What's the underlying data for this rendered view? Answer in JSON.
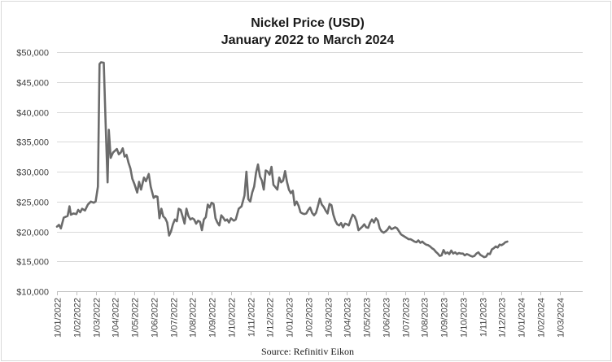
{
  "chart_data": {
    "type": "line",
    "title": "Nickel Price (USD)",
    "subtitle": "January 2022 to March 2024",
    "xlabel": "",
    "ylabel": "",
    "source": "Source: Refinitiv Eikon",
    "ylim": [
      10000,
      50000
    ],
    "y_ticks": [
      {
        "value": 10000,
        "label": "$10,000"
      },
      {
        "value": 15000,
        "label": "$15,000"
      },
      {
        "value": 20000,
        "label": "$20,000"
      },
      {
        "value": 25000,
        "label": "$25,000"
      },
      {
        "value": 30000,
        "label": "$30,000"
      },
      {
        "value": 35000,
        "label": "$35,000"
      },
      {
        "value": 40000,
        "label": "$40,000"
      },
      {
        "value": 45000,
        "label": "$45,000"
      },
      {
        "value": 50000,
        "label": "$50,000"
      }
    ],
    "x_range": [
      0,
      27.2
    ],
    "x_ticks": [
      "1/01/2022",
      "1/02/2022",
      "1/03/2022",
      "1/04/2022",
      "1/05/2022",
      "1/06/2022",
      "1/07/2022",
      "1/08/2022",
      "1/09/2022",
      "1/10/2022",
      "1/11/2022",
      "1/12/2022",
      "1/01/2023",
      "1/02/2023",
      "1/03/2023",
      "1/04/2023",
      "1/05/2023",
      "1/06/2023",
      "1/07/2023",
      "1/08/2023",
      "1/09/2023",
      "1/10/2023",
      "1/11/2023",
      "1/12/2023",
      "1/01/2024",
      "1/02/2024",
      "1/03/2024"
    ],
    "series": [
      {
        "name": "Nickel Price (USD)",
        "color": "#6b6b6b",
        "x_unit": "months since 1/01/2022",
        "points": [
          [
            0.0,
            20800
          ],
          [
            0.1,
            21100
          ],
          [
            0.2,
            20500
          ],
          [
            0.35,
            22300
          ],
          [
            0.55,
            22600
          ],
          [
            0.65,
            24200
          ],
          [
            0.72,
            22800
          ],
          [
            0.85,
            23000
          ],
          [
            1.0,
            22900
          ],
          [
            1.1,
            23600
          ],
          [
            1.2,
            23200
          ],
          [
            1.3,
            23800
          ],
          [
            1.45,
            23500
          ],
          [
            1.6,
            24500
          ],
          [
            1.75,
            25000
          ],
          [
            1.9,
            24800
          ],
          [
            2.0,
            25000
          ],
          [
            2.12,
            27500
          ],
          [
            2.2,
            48000
          ],
          [
            2.28,
            48300
          ],
          [
            2.42,
            48200
          ],
          [
            2.52,
            38000
          ],
          [
            2.62,
            28200
          ],
          [
            2.68,
            37000
          ],
          [
            2.78,
            32300
          ],
          [
            2.9,
            33200
          ],
          [
            3.0,
            33500
          ],
          [
            3.1,
            33800
          ],
          [
            3.2,
            32900
          ],
          [
            3.3,
            33200
          ],
          [
            3.4,
            33900
          ],
          [
            3.5,
            32500
          ],
          [
            3.6,
            32800
          ],
          [
            3.7,
            31500
          ],
          [
            3.8,
            30500
          ],
          [
            3.9,
            28800
          ],
          [
            4.0,
            28000
          ],
          [
            4.15,
            26500
          ],
          [
            4.25,
            28300
          ],
          [
            4.35,
            27000
          ],
          [
            4.5,
            29000
          ],
          [
            4.6,
            28400
          ],
          [
            4.75,
            29600
          ],
          [
            4.85,
            27500
          ],
          [
            5.0,
            25600
          ],
          [
            5.1,
            25900
          ],
          [
            5.2,
            25800
          ],
          [
            5.3,
            22200
          ],
          [
            5.4,
            23800
          ],
          [
            5.5,
            22500
          ],
          [
            5.6,
            22200
          ],
          [
            5.7,
            21500
          ],
          [
            5.8,
            19300
          ],
          [
            5.9,
            20000
          ],
          [
            6.0,
            21200
          ],
          [
            6.1,
            22000
          ],
          [
            6.2,
            21700
          ],
          [
            6.3,
            23800
          ],
          [
            6.4,
            23600
          ],
          [
            6.5,
            22500
          ],
          [
            6.6,
            21300
          ],
          [
            6.7,
            23800
          ],
          [
            6.8,
            22600
          ],
          [
            6.9,
            22000
          ],
          [
            7.0,
            22200
          ],
          [
            7.1,
            22000
          ],
          [
            7.2,
            21300
          ],
          [
            7.3,
            21800
          ],
          [
            7.4,
            21600
          ],
          [
            7.5,
            20200
          ],
          [
            7.6,
            22000
          ],
          [
            7.7,
            22400
          ],
          [
            7.8,
            24500
          ],
          [
            7.9,
            24000
          ],
          [
            8.0,
            24800
          ],
          [
            8.1,
            24600
          ],
          [
            8.2,
            22200
          ],
          [
            8.3,
            21500
          ],
          [
            8.4,
            21000
          ],
          [
            8.5,
            22700
          ],
          [
            8.6,
            22300
          ],
          [
            8.7,
            21800
          ],
          [
            8.8,
            22000
          ],
          [
            8.9,
            21500
          ],
          [
            9.0,
            22200
          ],
          [
            9.15,
            21800
          ],
          [
            9.25,
            22000
          ],
          [
            9.4,
            23800
          ],
          [
            9.55,
            24200
          ],
          [
            9.7,
            26000
          ],
          [
            9.8,
            30000
          ],
          [
            9.9,
            25400
          ],
          [
            10.0,
            25000
          ],
          [
            10.1,
            26500
          ],
          [
            10.2,
            27500
          ],
          [
            10.3,
            29800
          ],
          [
            10.4,
            31200
          ],
          [
            10.5,
            29200
          ],
          [
            10.6,
            28500
          ],
          [
            10.7,
            27000
          ],
          [
            10.8,
            30200
          ],
          [
            10.9,
            30000
          ],
          [
            11.0,
            29500
          ],
          [
            11.1,
            30800
          ],
          [
            11.2,
            27800
          ],
          [
            11.3,
            27400
          ],
          [
            11.4,
            27000
          ],
          [
            11.5,
            29000
          ],
          [
            11.6,
            28200
          ],
          [
            11.7,
            28500
          ],
          [
            11.8,
            30100
          ],
          [
            11.9,
            28300
          ],
          [
            12.0,
            27000
          ],
          [
            12.1,
            26400
          ],
          [
            12.2,
            26800
          ],
          [
            12.3,
            24400
          ],
          [
            12.4,
            25000
          ],
          [
            12.5,
            24300
          ],
          [
            12.6,
            23200
          ],
          [
            12.7,
            23000
          ],
          [
            12.8,
            22900
          ],
          [
            12.9,
            23000
          ],
          [
            13.0,
            23600
          ],
          [
            13.1,
            24000
          ],
          [
            13.2,
            23100
          ],
          [
            13.3,
            22700
          ],
          [
            13.4,
            23100
          ],
          [
            13.5,
            24200
          ],
          [
            13.6,
            25500
          ],
          [
            13.7,
            24500
          ],
          [
            13.8,
            24100
          ],
          [
            13.9,
            23500
          ],
          [
            14.0,
            23000
          ],
          [
            14.1,
            24600
          ],
          [
            14.2,
            24400
          ],
          [
            14.3,
            22800
          ],
          [
            14.4,
            21800
          ],
          [
            14.5,
            21200
          ],
          [
            14.6,
            21000
          ],
          [
            14.7,
            21400
          ],
          [
            14.8,
            20700
          ],
          [
            14.9,
            21300
          ],
          [
            15.0,
            21200
          ],
          [
            15.1,
            21000
          ],
          [
            15.2,
            22000
          ],
          [
            15.3,
            22800
          ],
          [
            15.4,
            22500
          ],
          [
            15.5,
            21700
          ],
          [
            15.6,
            20200
          ],
          [
            15.7,
            20500
          ],
          [
            15.8,
            20800
          ],
          [
            15.9,
            21200
          ],
          [
            16.0,
            20700
          ],
          [
            16.1,
            20600
          ],
          [
            16.2,
            21500
          ],
          [
            16.3,
            22000
          ],
          [
            16.4,
            21500
          ],
          [
            16.5,
            22200
          ],
          [
            16.6,
            21800
          ],
          [
            16.7,
            20500
          ],
          [
            16.8,
            20000
          ],
          [
            16.9,
            19800
          ],
          [
            17.0,
            20000
          ],
          [
            17.1,
            20300
          ],
          [
            17.2,
            20800
          ],
          [
            17.3,
            20400
          ],
          [
            17.4,
            20500
          ],
          [
            17.5,
            20700
          ],
          [
            17.6,
            20500
          ],
          [
            17.7,
            20000
          ],
          [
            17.8,
            19500
          ],
          [
            17.9,
            19300
          ],
          [
            18.0,
            19100
          ],
          [
            18.1,
            18900
          ],
          [
            18.2,
            18700
          ],
          [
            18.3,
            18700
          ],
          [
            18.4,
            18500
          ],
          [
            18.5,
            18300
          ],
          [
            18.6,
            18200
          ],
          [
            18.7,
            18500
          ],
          [
            18.8,
            18100
          ],
          [
            18.9,
            18300
          ],
          [
            19.0,
            18000
          ],
          [
            19.1,
            17800
          ],
          [
            19.2,
            17700
          ],
          [
            19.3,
            17500
          ],
          [
            19.4,
            17200
          ],
          [
            19.5,
            17000
          ],
          [
            19.6,
            16600
          ],
          [
            19.7,
            16300
          ],
          [
            19.8,
            15900
          ],
          [
            19.9,
            16000
          ],
          [
            20.0,
            16900
          ],
          [
            20.1,
            16300
          ],
          [
            20.2,
            16500
          ],
          [
            20.3,
            16200
          ],
          [
            20.4,
            16800
          ],
          [
            20.5,
            16300
          ],
          [
            20.6,
            16500
          ],
          [
            20.7,
            16200
          ],
          [
            20.8,
            16400
          ],
          [
            20.9,
            16300
          ],
          [
            21.0,
            16300
          ],
          [
            21.1,
            16000
          ],
          [
            21.2,
            16200
          ],
          [
            21.3,
            16100
          ],
          [
            21.4,
            15900
          ],
          [
            21.5,
            15800
          ],
          [
            21.6,
            15900
          ],
          [
            21.7,
            16300
          ],
          [
            21.8,
            16500
          ],
          [
            21.9,
            16100
          ],
          [
            22.0,
            15900
          ],
          [
            22.1,
            15700
          ],
          [
            22.2,
            15800
          ],
          [
            22.3,
            16300
          ],
          [
            22.4,
            16200
          ],
          [
            22.5,
            17000
          ],
          [
            22.6,
            17200
          ],
          [
            22.7,
            17500
          ],
          [
            22.8,
            17300
          ],
          [
            22.9,
            17800
          ],
          [
            23.0,
            17700
          ],
          [
            23.1,
            17900
          ],
          [
            23.2,
            18200
          ],
          [
            23.3,
            18300
          ]
        ]
      }
    ]
  }
}
